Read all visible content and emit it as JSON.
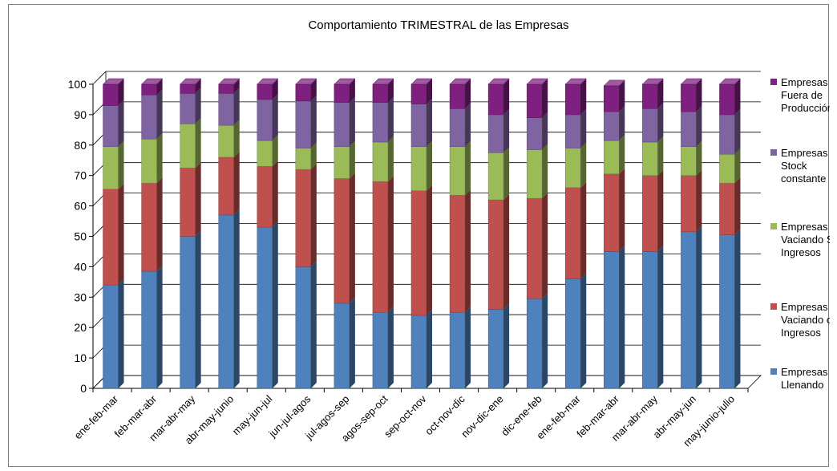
{
  "chart_data": {
    "type": "bar",
    "stacked": true,
    "three_d": true,
    "title": "Comportamiento TRIMESTRAL de las Empresas",
    "categories": [
      "ene-feb-mar",
      "feb-mar-abr",
      "mar-abr-may",
      "abr-may-junio",
      "may-jun-jul",
      "jun-jul-agos",
      "jul-agos-sep",
      "agos-sep-oct",
      "sep-oct-nov",
      "oct-nov-dic",
      "nov-dic-ene",
      "dic-ene-feb",
      "ene-feb-mar",
      "feb-mar-abr",
      "mar-abr-may",
      "abr-may-jun",
      "may-junio-julio"
    ],
    "series": [
      {
        "name": "Empresas Llenando",
        "legend_lines": [
          "Empresas",
          "Llenando"
        ],
        "color": "#4F81BD",
        "values": [
          34,
          38.5,
          50,
          57,
          53,
          40,
          28,
          25,
          24,
          25,
          26,
          29.5,
          36,
          45,
          45,
          51.5,
          50.5
        ]
      },
      {
        "name": "Empresas Vaciando con Ingresos",
        "legend_lines": [
          "Empresas",
          "Vaciando co",
          "Ingresos"
        ],
        "color": "#C0504D",
        "values": [
          31.5,
          29,
          22.5,
          19,
          20,
          32,
          41,
          43,
          41,
          38.5,
          36,
          33,
          30,
          25.5,
          25,
          18.5,
          17
        ]
      },
      {
        "name": "Empresas Vaciando Sin Ingresos",
        "legend_lines": [
          "Empresas",
          "Vaciando Si",
          "Ingresos"
        ],
        "color": "#9BBB59",
        "values": [
          14,
          14.5,
          14.5,
          10.5,
          8.5,
          7,
          10.5,
          13,
          14.5,
          16,
          15.5,
          16,
          13,
          11,
          11,
          9.5,
          9.5
        ]
      },
      {
        "name": "Empresas Stock constante",
        "legend_lines": [
          "Empresas",
          "Stock",
          "constante"
        ],
        "color": "#8064A2",
        "values": [
          13.5,
          14.5,
          10,
          10.5,
          13.5,
          15.5,
          14.5,
          13,
          14,
          12.5,
          12.5,
          10.5,
          11,
          9.5,
          11,
          11.5,
          13
        ]
      },
      {
        "name": "Empresas Fuera de Producción",
        "legend_lines": [
          "Empresas",
          "Fuera de",
          "Producción"
        ],
        "color": "#7F1F7F",
        "values": [
          7,
          3.5,
          3,
          3,
          5,
          5.5,
          6,
          6,
          6.5,
          8,
          10,
          11,
          10,
          8.5,
          8,
          9,
          10
        ]
      }
    ],
    "y_ticks": [
      0,
      10,
      20,
      30,
      40,
      50,
      60,
      70,
      80,
      90,
      100
    ],
    "ylim": [
      0,
      100
    ],
    "grid": true,
    "legend": "right"
  }
}
